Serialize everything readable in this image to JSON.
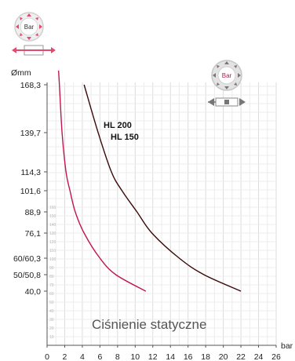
{
  "chart_data": {
    "type": "line",
    "title": "",
    "xlabel": "bar",
    "ylabel": "Ømm",
    "xlim": [
      0,
      26
    ],
    "xticks": [
      0,
      2,
      4,
      6,
      8,
      10,
      12,
      14,
      16,
      18,
      20,
      22,
      24,
      26
    ],
    "yticks": [
      {
        "value": 168.3,
        "label": "168,3"
      },
      {
        "value": 139.7,
        "label": "139,7"
      },
      {
        "value": 114.3,
        "label": "114,3"
      },
      {
        "value": 101.6,
        "label": "101,6"
      },
      {
        "value": 88.9,
        "label": "88,9"
      },
      {
        "value": 76.1,
        "label": "76,1"
      },
      {
        "value": 60.3,
        "label": "60/60,3"
      },
      {
        "value": 50.8,
        "label": "50/50,8"
      },
      {
        "value": 40.0,
        "label": "40,0"
      }
    ],
    "inner_yticks": [
      "10",
      "20",
      "30",
      "40",
      "50",
      "60",
      "70",
      "80",
      "90",
      "100",
      "110",
      "120",
      "130",
      "140",
      "150",
      "160"
    ],
    "annotation": "Ciśnienie statyczne",
    "series": [
      {
        "name": "",
        "color": "#c0174b",
        "points": [
          [
            1.3,
            180
          ],
          [
            1.4,
            168.3
          ],
          [
            1.7,
            139.7
          ],
          [
            2.15,
            114.3
          ],
          [
            2.6,
            101.6
          ],
          [
            3.2,
            88.9
          ],
          [
            4.2,
            76.1
          ],
          [
            6.0,
            60.3
          ],
          [
            7.8,
            50.8
          ],
          [
            11.2,
            40.0
          ]
        ]
      },
      {
        "name": "HL 200 HL 150",
        "color": "#3a0a0a",
        "points": [
          [
            4.2,
            168.3
          ],
          [
            5.8,
            139.7
          ],
          [
            7.3,
            114.3
          ],
          [
            8.5,
            101.6
          ],
          [
            10.2,
            88.9
          ],
          [
            11.9,
            76.1
          ],
          [
            15.0,
            60.3
          ],
          [
            17.8,
            50.8
          ],
          [
            22.0,
            40.0
          ]
        ]
      }
    ],
    "series_labels": [
      "HL 200",
      "HL 150"
    ],
    "grid": true,
    "icons": [
      {
        "name": "pressure-radial-icon",
        "text": "Bar",
        "color": "#e34a6f"
      },
      {
        "name": "pressure-all-directions-icon",
        "text": "Bar",
        "color": "#888888"
      }
    ]
  }
}
